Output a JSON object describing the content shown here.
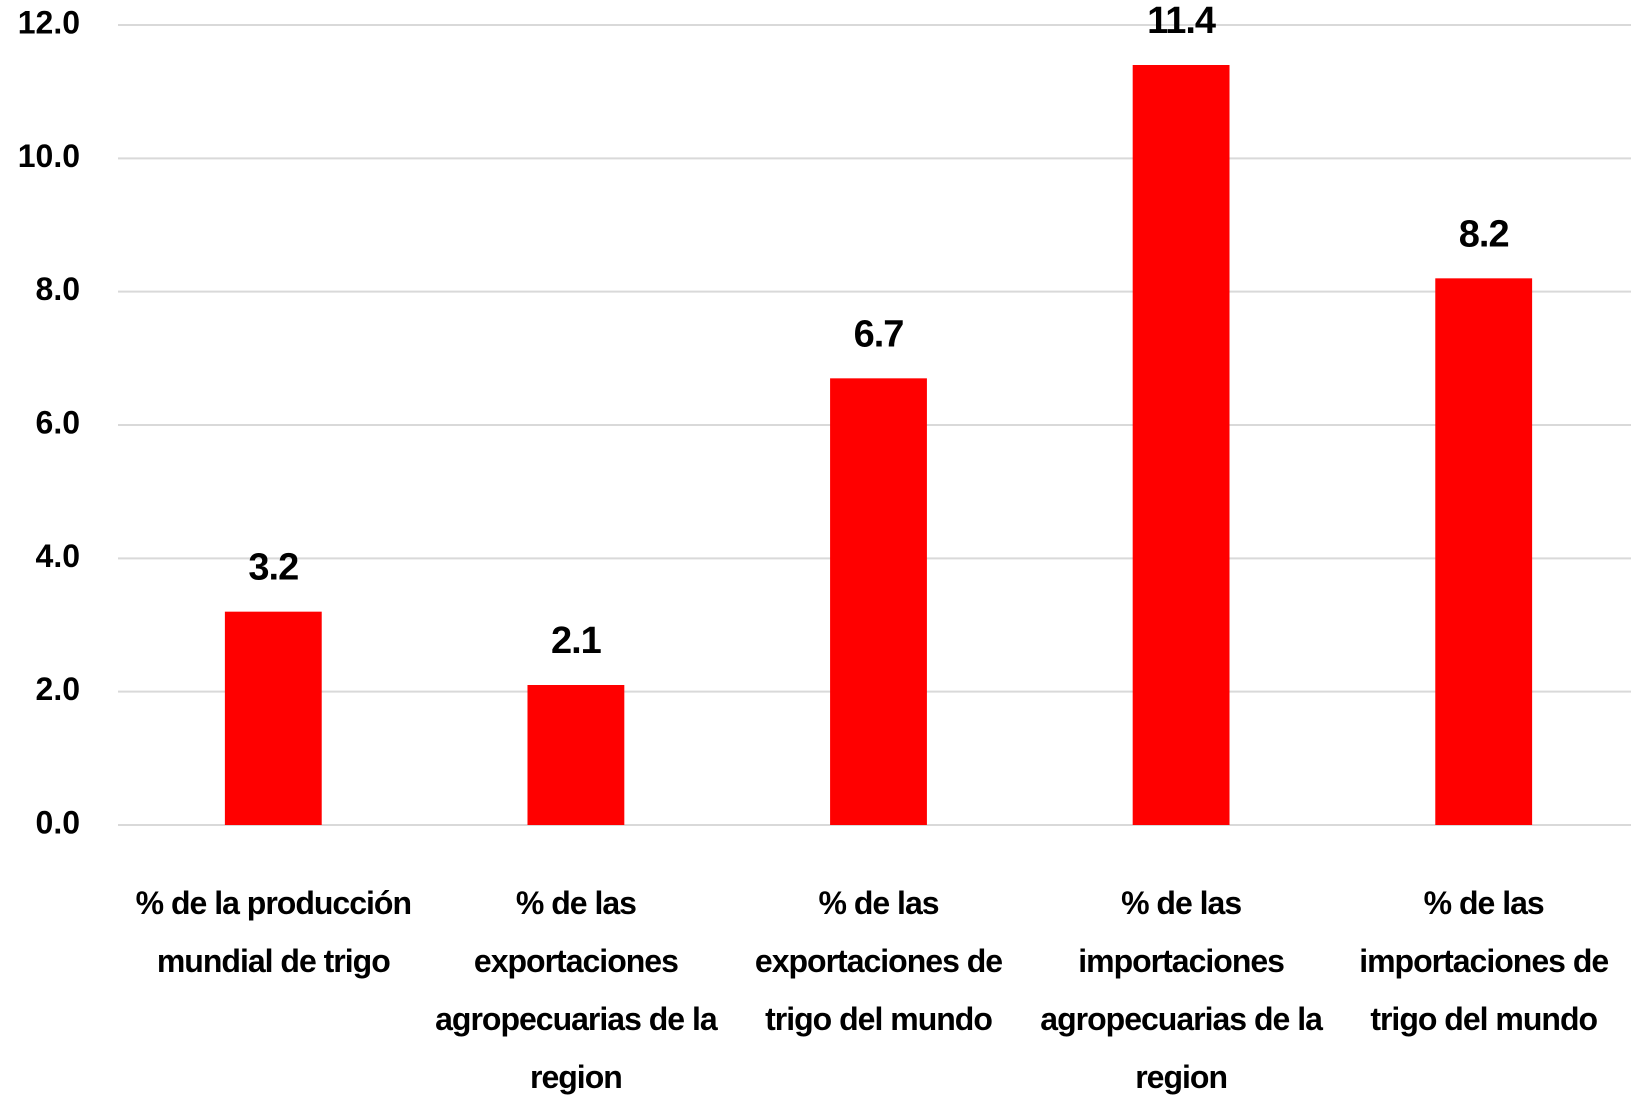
{
  "chart_data": {
    "type": "bar",
    "categories": [
      "% de la producción mundial de trigo",
      "% de las exportaciones agropecuarias de la region",
      "% de las exportaciones de trigo del mundo",
      "% de las importaciones agropecuarias de la region",
      "% de las importaciones de trigo del mundo"
    ],
    "values": [
      3.2,
      2.1,
      6.7,
      11.4,
      8.2
    ],
    "color": "#ff0000",
    "ylim": [
      0,
      12
    ],
    "yticks": [
      {
        "value": 0,
        "label": "0.0"
      },
      {
        "value": 2,
        "label": "2.0"
      },
      {
        "value": 4,
        "label": "4.0"
      },
      {
        "value": 6,
        "label": "6.0"
      },
      {
        "value": 8,
        "label": "8.0"
      },
      {
        "value": 10,
        "label": "10.0"
      },
      {
        "value": 12,
        "label": "12.0"
      }
    ],
    "grid": true
  }
}
